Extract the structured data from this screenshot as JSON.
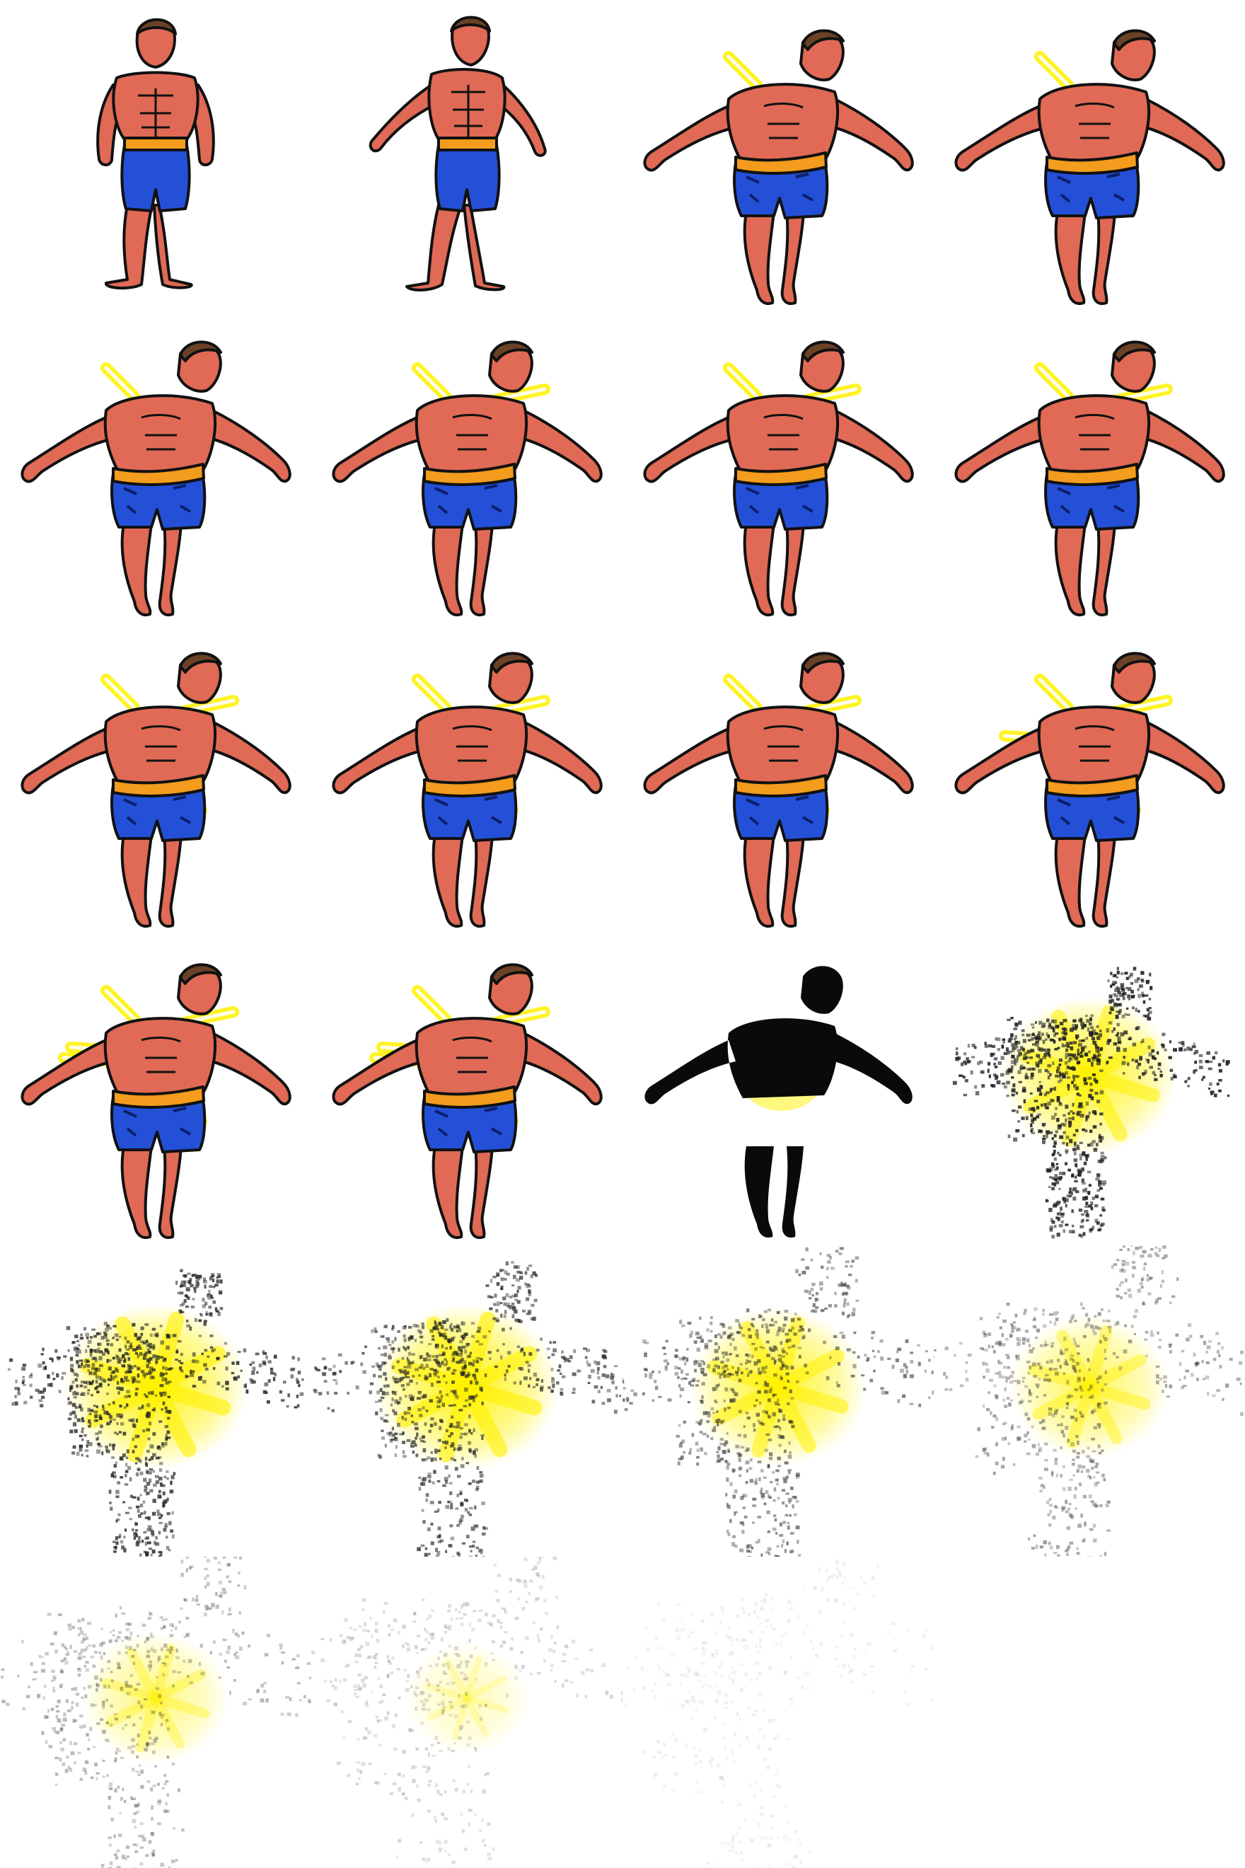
{
  "sheet": {
    "columns": 4,
    "rows": 6,
    "background": "#ffffff"
  },
  "colors": {
    "skin": "#e06a55",
    "skin_highlight": "#f3a08c",
    "shorts": "#2450d8",
    "belt": "#f39c1d",
    "hair": "#6b4226",
    "outline": "#111111",
    "glow": "#fff200",
    "dust": "#222222"
  },
  "frames": [
    {
      "pose": "stand",
      "rays": 0,
      "fade": 0
    },
    {
      "pose": "stagger",
      "rays": 0,
      "fade": 0
    },
    {
      "pose": "tpose",
      "rays": 1,
      "fade": 0
    },
    {
      "pose": "tpose",
      "rays": 1,
      "fade": 0
    },
    {
      "pose": "tpose",
      "rays": 1,
      "fade": 0
    },
    {
      "pose": "tpose",
      "rays": 2,
      "fade": 0
    },
    {
      "pose": "tpose",
      "rays": 2,
      "fade": 0
    },
    {
      "pose": "tpose",
      "rays": 2,
      "fade": 0
    },
    {
      "pose": "tpose",
      "rays": 3,
      "fade": 0
    },
    {
      "pose": "tpose",
      "rays": 3,
      "fade": 0
    },
    {
      "pose": "tpose",
      "rays": 3,
      "fade": 0
    },
    {
      "pose": "tpose",
      "rays": 4,
      "fade": 0
    },
    {
      "pose": "tpose",
      "rays": 5,
      "fade": 0
    },
    {
      "pose": "tpose",
      "rays": 5,
      "fade": 0
    },
    {
      "pose": "silhouette",
      "rays": 0,
      "fade": 0
    },
    {
      "pose": "dust",
      "rays": 0,
      "fade": 0.05,
      "glow": 0.9
    },
    {
      "pose": "dust",
      "rays": 0,
      "fade": 0.15,
      "glow": 1.0
    },
    {
      "pose": "dust",
      "rays": 0,
      "fade": 0.25,
      "glow": 1.0
    },
    {
      "pose": "dust",
      "rays": 0,
      "fade": 0.4,
      "glow": 0.9
    },
    {
      "pose": "dust",
      "rays": 0,
      "fade": 0.55,
      "glow": 0.7
    },
    {
      "pose": "dust",
      "rays": 0,
      "fade": 0.65,
      "glow": 0.55
    },
    {
      "pose": "dust",
      "rays": 0,
      "fade": 0.8,
      "glow": 0.3
    },
    {
      "pose": "dust",
      "rays": 0,
      "fade": 0.92,
      "glow": 0.0
    },
    {
      "pose": "empty",
      "rays": 0,
      "fade": 1
    }
  ]
}
